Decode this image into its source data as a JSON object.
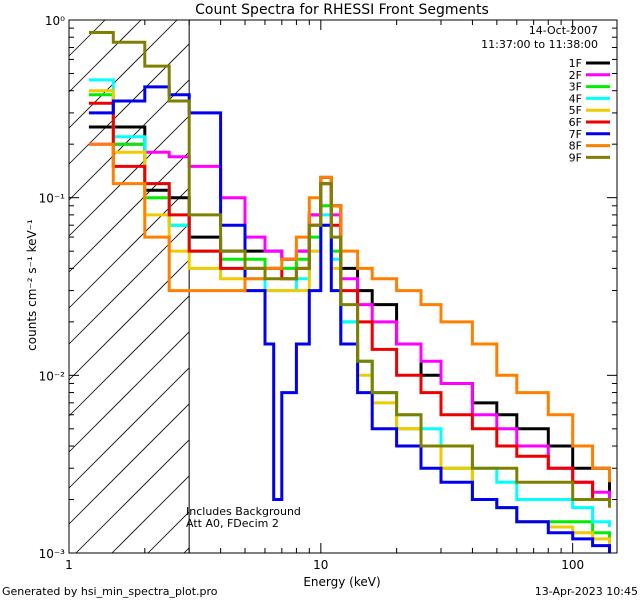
{
  "chart_data": {
    "type": "line",
    "title": "Count Spectra for RHESSI Front Segments",
    "date": "14-Oct-2007",
    "time_range": "11:37:00 to 11:38:00",
    "xlabel": "Energy (keV)",
    "ylabel": "counts cm⁻² s⁻¹ keV⁻¹",
    "xscale": "log",
    "yscale": "log",
    "xlim": [
      1.0,
      150
    ],
    "ylim": [
      0.001,
      1.0
    ],
    "x_tick_labels": [
      {
        "v": 1,
        "t": "1"
      },
      {
        "v": 10,
        "t": "10"
      },
      {
        "v": 100,
        "t": "100"
      }
    ],
    "y_tick_labels": [
      {
        "v": 1,
        "t": "10⁰"
      },
      {
        "v": 0.1,
        "t": "10⁻¹"
      },
      {
        "v": 0.01,
        "t": "10⁻²"
      },
      {
        "v": 0.001,
        "t": "10⁻³"
      }
    ],
    "shaded_region": {
      "x_from": 1.0,
      "x_to": 3.0,
      "style": "diagonal hatch"
    },
    "annotations": [
      "Includes Background",
      "Att A0, FDecim 2"
    ],
    "legend_position": "top-right",
    "series": [
      {
        "name": "1F",
        "color": "#000000",
        "x": [
          1.2,
          1.5,
          2.0,
          2.5,
          3.0,
          4.0,
          5.0,
          6.0,
          7.0,
          8.0,
          9.0,
          10.0,
          11.0,
          12.0,
          14.0,
          16.0,
          20.0,
          25.0,
          30.0,
          40.0,
          50.0,
          60.0,
          80.0,
          100.0,
          120.0,
          140.0
        ],
        "y": [
          0.25,
          0.25,
          0.11,
          0.1,
          0.06,
          0.05,
          0.05,
          0.05,
          0.045,
          0.05,
          0.08,
          0.13,
          0.09,
          0.04,
          0.03,
          0.025,
          0.015,
          0.01,
          0.009,
          0.007,
          0.006,
          0.005,
          0.004,
          0.003,
          0.003,
          0.002
        ]
      },
      {
        "name": "2F",
        "color": "#ff00ff",
        "x": [
          1.2,
          1.5,
          2.0,
          2.5,
          3.0,
          4.0,
          5.0,
          6.0,
          7.0,
          8.0,
          9.0,
          10.0,
          11.0,
          12.0,
          14.0,
          16.0,
          20.0,
          25.0,
          30.0,
          40.0,
          50.0,
          60.0,
          80.0,
          100.0,
          120.0,
          140.0
        ],
        "y": [
          0.2,
          0.2,
          0.18,
          0.17,
          0.15,
          0.1,
          0.06,
          0.05,
          0.045,
          0.05,
          0.08,
          0.12,
          0.08,
          0.035,
          0.025,
          0.02,
          0.015,
          0.012,
          0.009,
          0.006,
          0.005,
          0.004,
          0.003,
          0.0025,
          0.0022,
          0.002
        ]
      },
      {
        "name": "3F",
        "color": "#00ee00",
        "x": [
          1.2,
          1.5,
          2.0,
          2.5,
          3.0,
          4.0,
          5.0,
          6.0,
          7.0,
          8.0,
          9.0,
          10.0,
          11.0,
          12.0,
          14.0,
          16.0,
          20.0,
          25.0,
          30.0,
          40.0,
          50.0,
          60.0,
          80.0,
          100.0,
          120.0,
          140.0
        ],
        "y": [
          0.38,
          0.2,
          0.1,
          0.07,
          0.05,
          0.045,
          0.045,
          0.04,
          0.04,
          0.045,
          0.06,
          0.09,
          0.05,
          0.02,
          0.012,
          0.008,
          0.005,
          0.004,
          0.003,
          0.002,
          0.0018,
          0.0015,
          0.0015,
          0.0015,
          0.0013,
          0.0012
        ]
      },
      {
        "name": "4F",
        "color": "#00ffff",
        "x": [
          1.2,
          1.5,
          2.0,
          2.5,
          3.0,
          4.0,
          5.0,
          6.0,
          7.0,
          8.0,
          9.0,
          10.0,
          11.0,
          12.0,
          14.0,
          16.0,
          20.0,
          25.0,
          30.0,
          40.0,
          50.0,
          60.0,
          80.0,
          100.0,
          120.0,
          140.0
        ],
        "y": [
          0.46,
          0.22,
          0.12,
          0.07,
          0.05,
          0.04,
          0.035,
          0.03,
          0.03,
          0.035,
          0.05,
          0.08,
          0.045,
          0.02,
          0.012,
          0.008,
          0.006,
          0.005,
          0.004,
          0.003,
          0.0025,
          0.002,
          0.002,
          0.0018,
          0.0015,
          0.0014
        ]
      },
      {
        "name": "5F",
        "color": "#eecc00",
        "x": [
          1.2,
          1.5,
          2.0,
          2.5,
          3.0,
          4.0,
          5.0,
          6.0,
          7.0,
          8.0,
          9.0,
          10.0,
          11.0,
          12.0,
          14.0,
          16.0,
          20.0,
          25.0,
          30.0,
          40.0,
          50.0,
          60.0,
          80.0,
          100.0,
          120.0,
          140.0
        ],
        "y": [
          0.4,
          0.18,
          0.08,
          0.05,
          0.04,
          0.035,
          0.03,
          0.03,
          0.03,
          0.03,
          0.05,
          0.07,
          0.04,
          0.015,
          0.01,
          0.007,
          0.005,
          0.004,
          0.003,
          0.002,
          0.0018,
          0.0015,
          0.0014,
          0.0013,
          0.0012,
          0.0011
        ]
      },
      {
        "name": "6F",
        "color": "#ee0000",
        "x": [
          1.2,
          1.5,
          2.0,
          2.5,
          3.0,
          4.0,
          5.0,
          6.0,
          7.0,
          8.0,
          9.0,
          10.0,
          11.0,
          12.0,
          14.0,
          16.0,
          20.0,
          25.0,
          30.0,
          40.0,
          50.0,
          60.0,
          80.0,
          100.0,
          120.0,
          140.0
        ],
        "y": [
          0.34,
          0.15,
          0.12,
          0.08,
          0.05,
          0.04,
          0.04,
          0.04,
          0.035,
          0.04,
          0.07,
          0.12,
          0.07,
          0.03,
          0.02,
          0.014,
          0.01,
          0.008,
          0.006,
          0.005,
          0.004,
          0.0035,
          0.003,
          0.0025,
          0.002,
          0.0018
        ]
      },
      {
        "name": "7F",
        "color": "#0000ee",
        "x": [
          1.2,
          1.5,
          2.0,
          2.5,
          3.0,
          4.0,
          5.0,
          6.0,
          6.5,
          7.0,
          8.0,
          9.0,
          10.0,
          11.0,
          12.0,
          14.0,
          16.0,
          20.0,
          25.0,
          30.0,
          40.0,
          50.0,
          60.0,
          80.0,
          100.0,
          120.0,
          140.0
        ],
        "y": [
          0.3,
          0.35,
          0.42,
          0.38,
          0.3,
          0.07,
          0.03,
          0.015,
          0.002,
          0.008,
          0.015,
          0.03,
          0.07,
          0.03,
          0.015,
          0.008,
          0.005,
          0.004,
          0.003,
          0.0025,
          0.002,
          0.0018,
          0.0015,
          0.0013,
          0.0012,
          0.0011,
          0.001
        ]
      },
      {
        "name": "8F",
        "color": "#ff8000",
        "x": [
          1.2,
          1.5,
          2.0,
          2.5,
          3.0,
          4.0,
          5.0,
          6.0,
          7.0,
          8.0,
          9.0,
          10.0,
          11.0,
          12.0,
          14.0,
          16.0,
          20.0,
          25.0,
          30.0,
          40.0,
          50.0,
          60.0,
          80.0,
          100.0,
          120.0,
          140.0
        ],
        "y": [
          0.2,
          0.12,
          0.06,
          0.03,
          0.03,
          0.03,
          0.035,
          0.04,
          0.045,
          0.06,
          0.1,
          0.13,
          0.09,
          0.05,
          0.04,
          0.035,
          0.03,
          0.025,
          0.02,
          0.015,
          0.01,
          0.008,
          0.006,
          0.004,
          0.003,
          0.0025
        ]
      },
      {
        "name": "9F",
        "color": "#808000",
        "x": [
          1.2,
          1.5,
          2.0,
          2.5,
          3.0,
          4.0,
          5.0,
          6.0,
          7.0,
          8.0,
          9.0,
          10.0,
          11.0,
          12.0,
          14.0,
          16.0,
          20.0,
          25.0,
          30.0,
          40.0,
          50.0,
          60.0,
          80.0,
          100.0,
          120.0,
          140.0
        ],
        "y": [
          0.85,
          0.75,
          0.55,
          0.35,
          0.08,
          0.05,
          0.04,
          0.035,
          0.035,
          0.04,
          0.07,
          0.12,
          0.06,
          0.025,
          0.012,
          0.008,
          0.006,
          0.004,
          0.004,
          0.003,
          0.003,
          0.0025,
          0.0025,
          0.002,
          0.002,
          0.0018
        ]
      }
    ]
  },
  "footer": {
    "left": "Generated by hsi_min_spectra_plot.pro",
    "right": "13-Apr-2023 10:45"
  }
}
